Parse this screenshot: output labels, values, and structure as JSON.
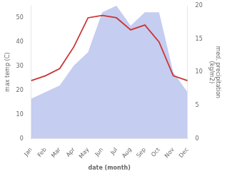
{
  "chart_data": {
    "type": "line",
    "xlabel": "date (month)",
    "ylabel": "max temp (C)",
    "y2label": "med. precipitation\n(kg/m2)",
    "categories": [
      "Jan",
      "Feb",
      "Mar",
      "Apr",
      "May",
      "Jun",
      "Jul",
      "Aug",
      "Sep",
      "Oct",
      "Nov",
      "Dec"
    ],
    "series": [
      {
        "type": "area",
        "color": "#c5cdf0",
        "axis": "y2",
        "values": [
          6,
          7,
          8,
          11,
          13,
          19,
          20,
          17,
          19,
          19,
          10,
          7
        ]
      },
      {
        "type": "line",
        "color": "#cc3333",
        "values": [
          24,
          26,
          29,
          38,
          50,
          51,
          50,
          45,
          47,
          40,
          26,
          24
        ]
      }
    ],
    "ylim": [
      0,
      55
    ],
    "yticks": [
      0,
      10,
      20,
      30,
      40,
      50
    ],
    "y2lim": [
      0,
      20
    ],
    "y2ticks": [
      0,
      5,
      10,
      15,
      20
    ],
    "grid": false
  }
}
